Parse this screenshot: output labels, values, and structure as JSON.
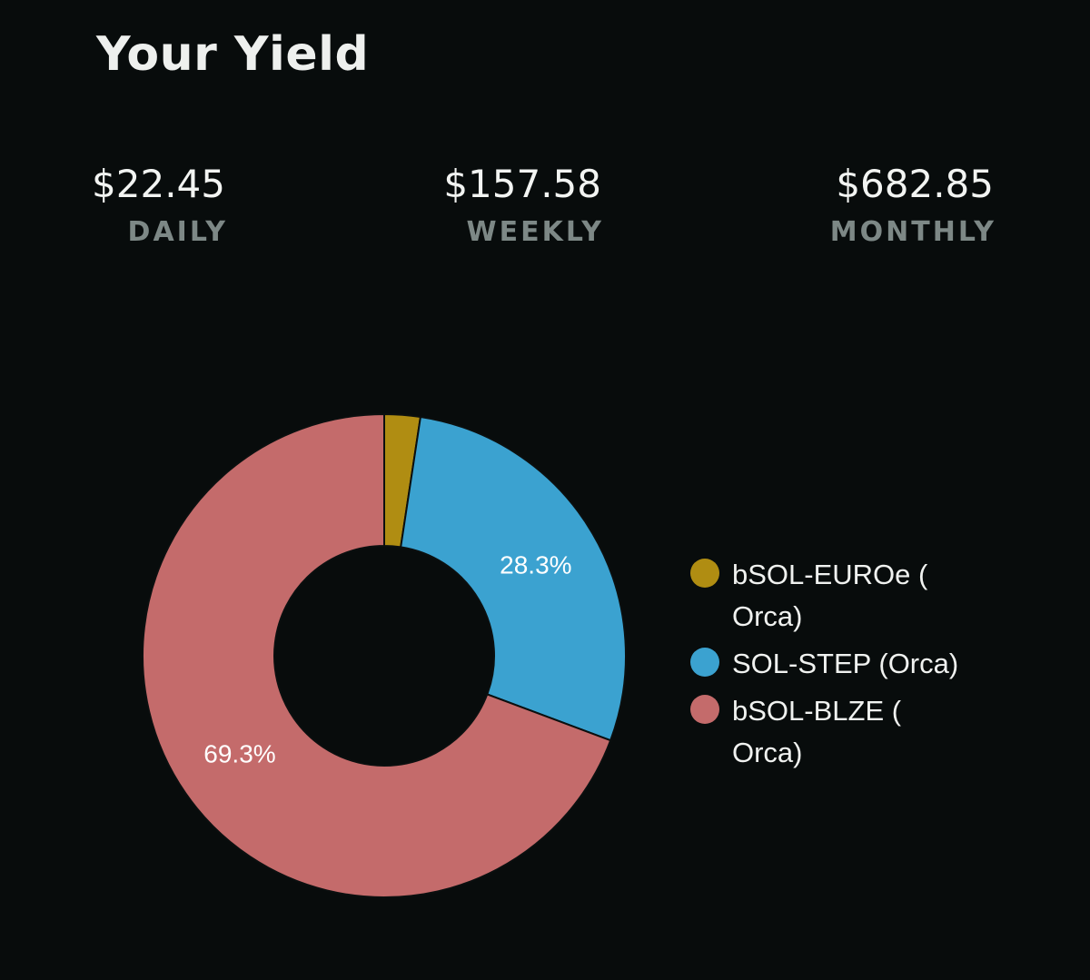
{
  "title": "Your Yield",
  "stats": {
    "daily": {
      "amount": "$22.45",
      "period": "DAILY"
    },
    "weekly": {
      "amount": "$157.58",
      "period": "WEEKLY"
    },
    "monthly": {
      "amount": "$682.85",
      "period": "MONTHLY"
    }
  },
  "chart_data": {
    "type": "pie",
    "donut": true,
    "categories": [
      "bSOL-EUROe ( Orca)",
      "SOL-STEP (Orca)",
      "bSOL-BLZE ( Orca)"
    ],
    "values": [
      2.4,
      28.3,
      69.3
    ],
    "data_labels": [
      "",
      "28.3%",
      "69.3%"
    ],
    "colors": [
      "#b08d12",
      "#3ba2d0",
      "#c46b6b"
    ],
    "legend_position": "right"
  }
}
